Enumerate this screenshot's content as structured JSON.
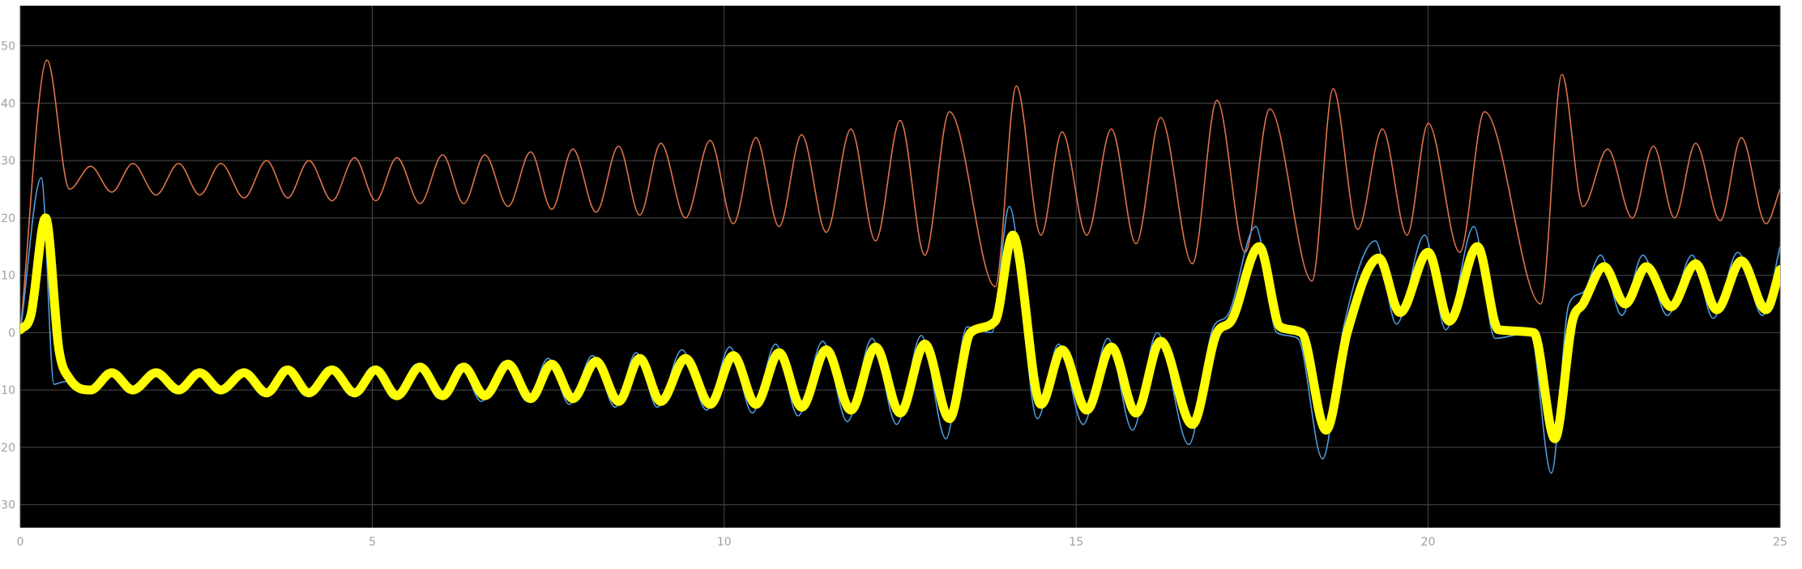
{
  "chart_data": {
    "type": "line",
    "background": "#000000",
    "grid": true,
    "xlim": [
      0,
      25
    ],
    "xticks": [
      0,
      5,
      10,
      15,
      20,
      25
    ],
    "ylim": [
      -34,
      57
    ],
    "yticks": [
      -30,
      -20,
      -10,
      0,
      10,
      20,
      30,
      40,
      50
    ],
    "series": [
      {
        "color": "#e0734a",
        "width": 1.6,
        "x": [
          0,
          0.38,
          0.7,
          1.0,
          1.3,
          1.6,
          1.93,
          2.25,
          2.55,
          2.85,
          3.18,
          3.5,
          3.8,
          4.1,
          4.43,
          4.75,
          5.05,
          5.35,
          5.68,
          6.0,
          6.3,
          6.6,
          6.93,
          7.25,
          7.55,
          7.85,
          8.18,
          8.5,
          8.8,
          9.1,
          9.45,
          9.8,
          10.13,
          10.45,
          10.78,
          11.1,
          11.45,
          11.8,
          12.15,
          12.5,
          12.85,
          13.2,
          13.85,
          14.15,
          14.5,
          14.8,
          15.15,
          15.5,
          15.85,
          16.2,
          16.65,
          17.0,
          17.4,
          17.75,
          18.35,
          18.65,
          19.0,
          19.35,
          19.7,
          20.0,
          20.45,
          20.8,
          21.6,
          21.9,
          22.2,
          22.55,
          22.9,
          23.2,
          23.5,
          23.8,
          24.15,
          24.45,
          24.8,
          25
        ],
        "values": [
          0,
          47.5,
          25,
          29,
          24.5,
          29.5,
          24,
          29.5,
          24,
          29.5,
          23.5,
          30,
          23.5,
          30,
          23,
          30.5,
          23,
          30.5,
          22.5,
          31,
          22.5,
          31,
          22,
          31.5,
          21.5,
          32,
          21,
          32.5,
          20.5,
          33,
          20,
          33.5,
          19,
          34,
          18.5,
          34.5,
          17.5,
          35.5,
          16,
          37,
          13.5,
          38.5,
          8,
          43,
          17,
          35,
          17,
          35.5,
          15.5,
          37.5,
          12,
          40.5,
          14,
          39,
          9,
          42.5,
          18,
          35.5,
          17,
          36.5,
          14,
          38.5,
          5,
          45,
          22,
          32,
          20,
          32.5,
          20,
          33,
          19.5,
          34,
          19,
          25
        ]
      },
      {
        "color": "#4d9de0",
        "width": 1.6,
        "x": [
          0,
          0.3,
          0.48,
          0.65,
          0.95,
          1.25,
          1.55,
          1.88,
          2.2,
          2.5,
          2.8,
          3.13,
          3.45,
          3.75,
          4.05,
          4.38,
          4.7,
          5.0,
          5.3,
          5.63,
          5.95,
          6.25,
          6.55,
          6.88,
          7.2,
          7.5,
          7.8,
          8.13,
          8.45,
          8.75,
          9.05,
          9.4,
          9.75,
          10.08,
          10.4,
          10.73,
          11.05,
          11.4,
          11.75,
          12.1,
          12.45,
          12.8,
          13.15,
          13.45,
          13.8,
          14.05,
          14.45,
          14.75,
          15.1,
          15.45,
          15.8,
          16.15,
          16.6,
          16.95,
          17.15,
          17.55,
          17.85,
          18.15,
          18.5,
          18.8,
          19.25,
          19.55,
          19.95,
          20.25,
          20.65,
          20.95,
          21.45,
          21.75,
          22.0,
          22.2,
          22.45,
          22.75,
          23.05,
          23.4,
          23.75,
          24.05,
          24.4,
          24.75,
          25
        ],
        "values": [
          0,
          27,
          -9,
          -8.5,
          -10.5,
          -6.5,
          -10.5,
          -6.5,
          -10.5,
          -6.5,
          -10.5,
          -6.5,
          -11,
          -6,
          -11,
          -6,
          -11,
          -6,
          -11.5,
          -5.5,
          -11.5,
          -5.5,
          -12,
          -5,
          -12,
          -4.5,
          -12.5,
          -4,
          -13,
          -3.5,
          -13,
          -3,
          -13.5,
          -2.5,
          -14,
          -2,
          -14.5,
          -1.5,
          -15.5,
          -1,
          -16,
          -0.5,
          -18.5,
          1,
          0,
          22,
          -15,
          -2,
          -16,
          -1,
          -17,
          0,
          -19.5,
          1,
          3,
          18.5,
          0,
          -1,
          -22,
          1,
          16,
          1.5,
          17,
          0.5,
          18.5,
          -1,
          0,
          -24.5,
          5,
          7,
          13.5,
          3,
          13.5,
          3,
          13.5,
          2.5,
          14,
          3,
          15
        ]
      },
      {
        "color": "#ffff00",
        "width": 11,
        "x": [
          0,
          0.15,
          0.36,
          0.55,
          0.7,
          1.0,
          1.3,
          1.6,
          1.93,
          2.25,
          2.55,
          2.85,
          3.18,
          3.5,
          3.8,
          4.1,
          4.43,
          4.75,
          5.05,
          5.35,
          5.68,
          6.0,
          6.3,
          6.6,
          6.93,
          7.25,
          7.55,
          7.85,
          8.18,
          8.5,
          8.8,
          9.1,
          9.45,
          9.8,
          10.13,
          10.45,
          10.78,
          11.1,
          11.45,
          11.8,
          12.15,
          12.5,
          12.85,
          13.2,
          13.5,
          13.85,
          14.1,
          14.5,
          14.8,
          15.15,
          15.5,
          15.85,
          16.2,
          16.65,
          17.0,
          17.2,
          17.6,
          17.9,
          18.2,
          18.55,
          18.85,
          19.3,
          19.6,
          20.0,
          20.3,
          20.7,
          21.0,
          21.5,
          21.8,
          22.05,
          22.2,
          22.5,
          22.8,
          23.1,
          23.45,
          23.8,
          24.1,
          24.45,
          24.8,
          25
        ],
        "values": [
          0.5,
          3,
          20,
          -3,
          -8,
          -10,
          -7,
          -10,
          -7,
          -10,
          -7,
          -10,
          -7,
          -10.5,
          -6.5,
          -10.5,
          -6.5,
          -10.5,
          -6.5,
          -11,
          -6,
          -11,
          -6,
          -11,
          -5.5,
          -11.5,
          -5.5,
          -11.5,
          -5,
          -12,
          -4.5,
          -12,
          -4.5,
          -12.5,
          -4,
          -12.5,
          -3.5,
          -13,
          -3,
          -13.5,
          -2.5,
          -14,
          -2,
          -15,
          0,
          2,
          17,
          -12.5,
          -3,
          -13.5,
          -2.5,
          -14,
          -1.5,
          -16,
          0,
          2,
          15,
          1,
          0,
          -17,
          0,
          13,
          3.5,
          14,
          2,
          15,
          0.5,
          0,
          -18.5,
          2,
          5,
          11.5,
          5,
          11.5,
          4.5,
          12,
          4,
          12.5,
          4,
          11
        ]
      }
    ]
  }
}
